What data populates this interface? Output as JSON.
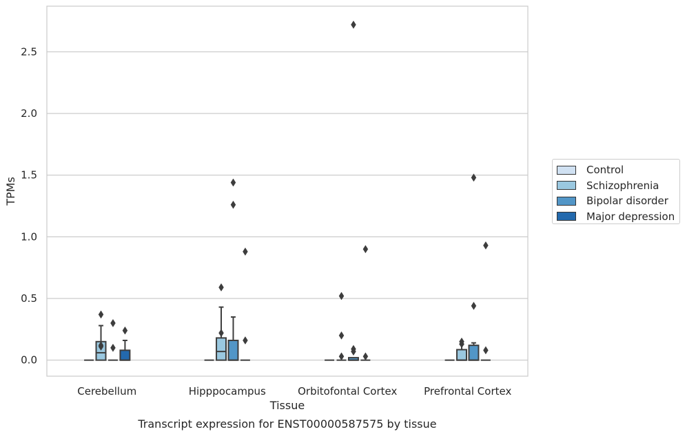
{
  "chart_data": {
    "type": "box",
    "title": "Transcript expression for ENST00000587575 by tissue",
    "xlabel": "Tissue",
    "ylabel": "TPMs",
    "ylim": [
      -0.13,
      2.87
    ],
    "yticks": [
      "0.0",
      "0.5",
      "1.0",
      "1.5",
      "2.0",
      "2.5"
    ],
    "ytick_values": [
      0,
      0.5,
      1.0,
      1.5,
      2.0,
      2.5
    ],
    "grid": true,
    "legend_placement": "right",
    "categories": [
      "Cerebellum",
      "Hipppocampus",
      "Orbitofontal Cortex",
      "Prefrontal Cortex"
    ],
    "series": [
      {
        "name": "Control",
        "color": "#d0e1f2",
        "boxes": [
          {
            "q1": 0,
            "median": 0,
            "q3": 0,
            "whislo": 0,
            "whishi": 0,
            "fliers": []
          },
          {
            "q1": 0,
            "median": 0,
            "q3": 0,
            "whislo": 0,
            "whishi": 0,
            "fliers": []
          },
          {
            "q1": 0,
            "median": 0,
            "q3": 0,
            "whislo": 0,
            "whishi": 0,
            "fliers": []
          },
          {
            "q1": 0,
            "median": 0,
            "q3": 0,
            "whislo": 0,
            "whishi": 0,
            "fliers": []
          }
        ]
      },
      {
        "name": "Schizophrenia",
        "color": "#9ac8e0",
        "boxes": [
          {
            "q1": 0,
            "median": 0.06,
            "q3": 0.15,
            "whislo": 0,
            "whishi": 0.28,
            "fliers": [
              0.37,
              0.11,
              0.12
            ]
          },
          {
            "q1": 0,
            "median": 0.07,
            "q3": 0.18,
            "whislo": 0,
            "whishi": 0.43,
            "fliers": [
              0.59,
              0.22
            ]
          },
          {
            "q1": 0,
            "median": 0,
            "q3": 0,
            "whislo": 0,
            "whishi": 0,
            "fliers": [
              0.52,
              0.2,
              0.03
            ]
          },
          {
            "q1": 0,
            "median": 0,
            "q3": 0.085,
            "whislo": 0,
            "whishi": 0.13,
            "fliers": [
              0.13,
              0.15
            ]
          }
        ]
      },
      {
        "name": "Bipolar disorder",
        "color": "#5296c7",
        "boxes": [
          {
            "q1": 0,
            "median": 0,
            "q3": 0,
            "whislo": 0,
            "whishi": 0,
            "fliers": [
              0.3,
              0.1
            ]
          },
          {
            "q1": 0,
            "median": 0,
            "q3": 0.16,
            "whislo": 0,
            "whishi": 0.35,
            "fliers": [
              1.44,
              1.26
            ]
          },
          {
            "q1": 0,
            "median": 0,
            "q3": 0.02,
            "whislo": 0,
            "whishi": 0.02,
            "fliers": [
              2.72,
              0.09,
              0.07
            ]
          },
          {
            "q1": 0,
            "median": 0,
            "q3": 0.12,
            "whislo": 0,
            "whishi": 0.14,
            "fliers": [
              1.48,
              0.44
            ]
          }
        ]
      },
      {
        "name": "Major depression",
        "color": "#2369ad",
        "boxes": [
          {
            "q1": 0,
            "median": 0,
            "q3": 0.08,
            "whislo": 0,
            "whishi": 0.16,
            "fliers": [
              0.24
            ]
          },
          {
            "q1": 0,
            "median": 0,
            "q3": 0,
            "whislo": 0,
            "whishi": 0,
            "fliers": [
              0.88,
              0.16
            ]
          },
          {
            "q1": 0,
            "median": 0,
            "q3": 0,
            "whislo": 0,
            "whishi": 0,
            "fliers": [
              0.9,
              0.03
            ]
          },
          {
            "q1": 0,
            "median": 0,
            "q3": 0,
            "whislo": 0,
            "whishi": 0,
            "fliers": [
              0.93,
              0.08
            ]
          }
        ]
      }
    ]
  }
}
